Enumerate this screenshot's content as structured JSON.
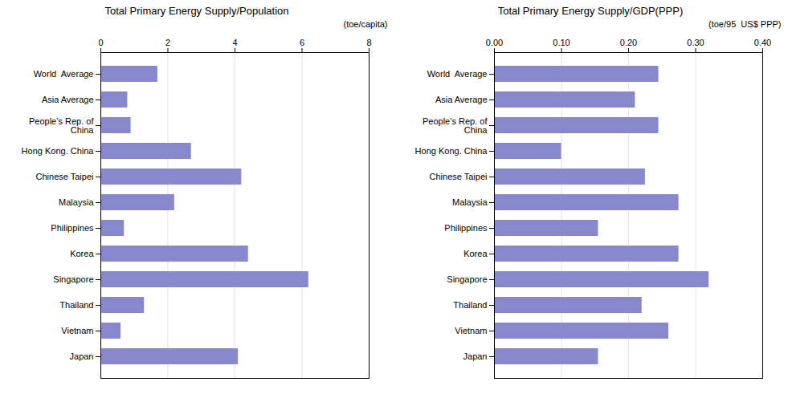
{
  "chart_data": [
    {
      "type": "bar",
      "orientation": "horizontal",
      "title": "Total Primary Energy Supply/Population",
      "xlabel": "(toe/capita)",
      "categories": [
        "World  Average",
        "Asia Average",
        "People’s Rep. of\nChina",
        "Hong Kong. China",
        "Chinese Taipei",
        "Malaysia",
        "Philippines",
        "Korea",
        "Singapore",
        "Thailand",
        "Vietnam",
        "Japan"
      ],
      "values": [
        1.7,
        0.8,
        0.9,
        2.7,
        4.2,
        2.2,
        0.7,
        4.4,
        6.2,
        1.3,
        0.6,
        4.1
      ],
      "color": "#8888CC",
      "xlim": [
        0,
        8
      ],
      "xticks": [
        0,
        2,
        4,
        6,
        8
      ],
      "grid": true
    },
    {
      "type": "bar",
      "orientation": "horizontal",
      "title": "Total Primary Energy Supply/GDP(PPP)",
      "xlabel": "(toe/95  US$ PPP)",
      "categories": [
        "World  Average",
        "Asia Average",
        "People’s Rep. of\nChina",
        "Hong Kong. China",
        "Chinese Taipei",
        "Malaysia",
        "Philippines",
        "Korea",
        "Singapore",
        "Thailand",
        "Vietnam",
        "Japan"
      ],
      "values": [
        0.245,
        0.21,
        0.245,
        0.1,
        0.225,
        0.275,
        0.155,
        0.275,
        0.32,
        0.22,
        0.26,
        0.155
      ],
      "color": "#8888CC",
      "xlim": [
        0.0,
        0.4
      ],
      "xticks": [
        {
          "value": 0.0,
          "label": "0.00"
        },
        {
          "value": 0.1,
          "label": "0.10"
        },
        {
          "value": 0.2,
          "label": "0.20"
        },
        {
          "value": 0.3,
          "label": "0.30"
        },
        {
          "value": 0.4,
          "label": "0.40"
        }
      ],
      "grid": true
    }
  ]
}
